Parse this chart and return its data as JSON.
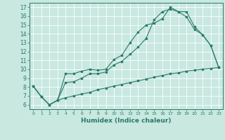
{
  "xlabel": "Humidex (Indice chaleur)",
  "bg_color": "#c8e8e0",
  "line_color": "#2a7a6a",
  "xlim": [
    -0.5,
    23.5
  ],
  "ylim": [
    5.5,
    17.5
  ],
  "xticks": [
    0,
    1,
    2,
    3,
    4,
    5,
    6,
    7,
    8,
    9,
    10,
    11,
    12,
    13,
    14,
    15,
    16,
    17,
    18,
    19,
    20,
    21,
    22,
    23
  ],
  "yticks": [
    6,
    7,
    8,
    9,
    10,
    11,
    12,
    13,
    14,
    15,
    16,
    17
  ],
  "series": [
    {
      "x": [
        0,
        1,
        2,
        3,
        4,
        5,
        6,
        7,
        8,
        9,
        10,
        11,
        12,
        13,
        14,
        15,
        16,
        17,
        18,
        19,
        20,
        21,
        22,
        23
      ],
      "y": [
        8.1,
        6.9,
        6.0,
        6.5,
        9.5,
        9.5,
        9.8,
        10.0,
        9.9,
        10.0,
        11.1,
        11.6,
        13.0,
        14.2,
        15.0,
        15.2,
        15.7,
        17.0,
        16.5,
        16.5,
        14.8,
        13.9,
        12.7,
        10.2
      ]
    },
    {
      "x": [
        0,
        1,
        2,
        3,
        4,
        5,
        6,
        7,
        8,
        9,
        10,
        11,
        12,
        13,
        14,
        15,
        16,
        17,
        18,
        19,
        20,
        21,
        22,
        23
      ],
      "y": [
        8.1,
        6.9,
        6.0,
        6.5,
        8.5,
        8.6,
        9.0,
        9.5,
        9.5,
        9.7,
        10.5,
        10.9,
        11.7,
        12.5,
        13.5,
        15.6,
        16.5,
        16.8,
        16.5,
        15.9,
        14.5,
        13.9,
        12.7,
        10.2
      ]
    },
    {
      "x": [
        0,
        1,
        2,
        3,
        4,
        5,
        6,
        7,
        8,
        9,
        10,
        11,
        12,
        13,
        14,
        15,
        16,
        17,
        18,
        19,
        20,
        21,
        22,
        23
      ],
      "y": [
        8.1,
        6.9,
        6.0,
        6.5,
        6.8,
        7.0,
        7.2,
        7.4,
        7.7,
        7.9,
        8.1,
        8.3,
        8.5,
        8.7,
        8.9,
        9.1,
        9.3,
        9.5,
        9.6,
        9.8,
        9.9,
        10.0,
        10.1,
        10.2
      ]
    }
  ]
}
